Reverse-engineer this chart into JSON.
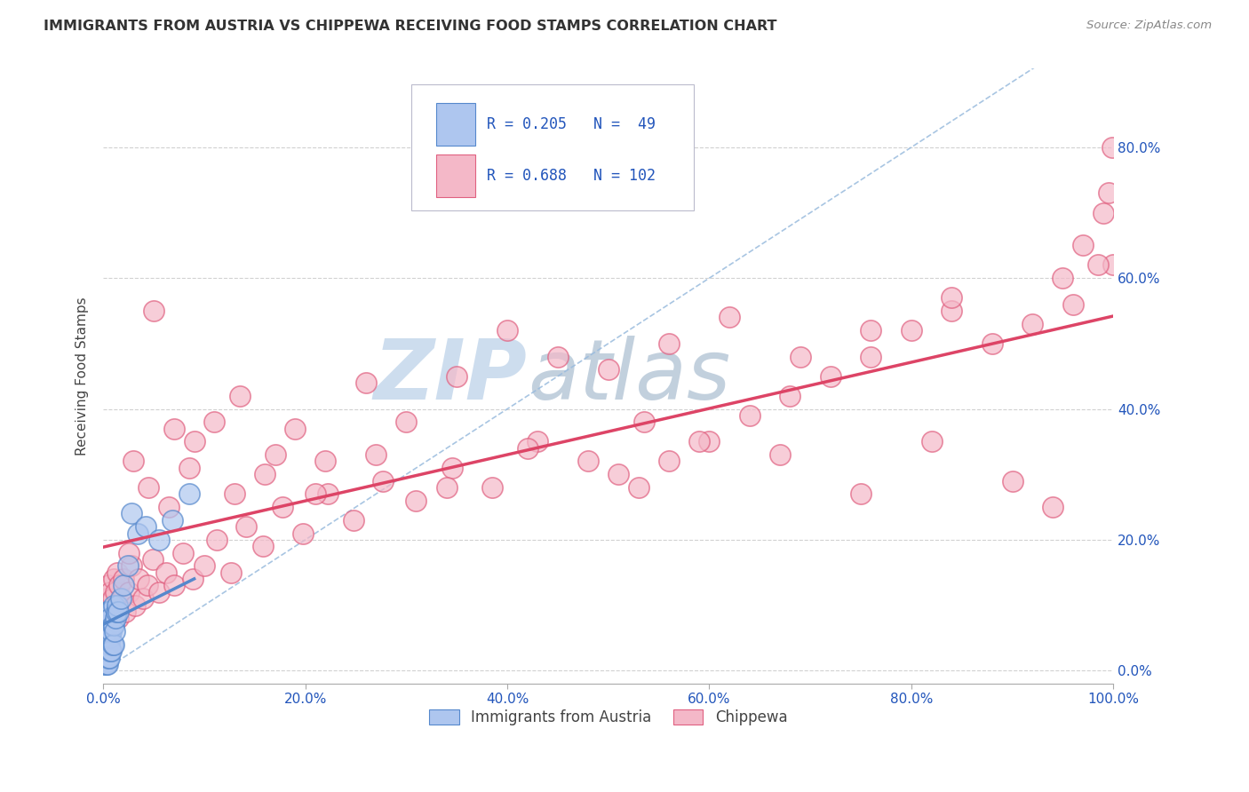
{
  "title": "IMMIGRANTS FROM AUSTRIA VS CHIPPEWA RECEIVING FOOD STAMPS CORRELATION CHART",
  "source": "Source: ZipAtlas.com",
  "ylabel": "Receiving Food Stamps",
  "xlim": [
    0,
    1.0
  ],
  "ylim": [
    -0.02,
    0.92
  ],
  "xticks": [
    0.0,
    0.2,
    0.4,
    0.6,
    0.8,
    1.0
  ],
  "yticks": [
    0.0,
    0.2,
    0.4,
    0.6,
    0.8
  ],
  "xtick_labels": [
    "0.0%",
    "20.0%",
    "40.0%",
    "60.0%",
    "80.0%",
    "100.0%"
  ],
  "ytick_labels": [
    "0.0%",
    "20.0%",
    "40.0%",
    "60.0%",
    "80.0%"
  ],
  "background_color": "#ffffff",
  "grid_color": "#cccccc",
  "austria_color": "#aec6ef",
  "austria_edge_color": "#5588cc",
  "chippewa_color": "#f4b8c8",
  "chippewa_edge_color": "#e06080",
  "austria_R": 0.205,
  "austria_N": 49,
  "chippewa_R": 0.688,
  "chippewa_N": 102,
  "legend_color": "#2255bb",
  "austria_line_color": "#5588cc",
  "chippewa_line_color": "#dd4466",
  "diagonal_color": "#99bbdd",
  "watermark_zip": "ZIP",
  "watermark_atlas": "atlas",
  "watermark_color_zip": "#c0d4e8",
  "watermark_color_atlas": "#c0ccdd",
  "austria_x_pts": [
    0.001,
    0.001,
    0.001,
    0.002,
    0.002,
    0.002,
    0.002,
    0.003,
    0.003,
    0.003,
    0.003,
    0.003,
    0.004,
    0.004,
    0.004,
    0.004,
    0.004,
    0.005,
    0.005,
    0.005,
    0.005,
    0.006,
    0.006,
    0.006,
    0.006,
    0.007,
    0.007,
    0.007,
    0.008,
    0.008,
    0.009,
    0.009,
    0.01,
    0.01,
    0.01,
    0.011,
    0.012,
    0.013,
    0.014,
    0.015,
    0.017,
    0.02,
    0.024,
    0.028,
    0.034,
    0.042,
    0.055,
    0.068,
    0.085
  ],
  "austria_y_pts": [
    0.01,
    0.03,
    0.05,
    0.01,
    0.03,
    0.05,
    0.08,
    0.01,
    0.03,
    0.05,
    0.07,
    0.09,
    0.01,
    0.03,
    0.05,
    0.07,
    0.09,
    0.02,
    0.04,
    0.06,
    0.09,
    0.02,
    0.04,
    0.06,
    0.09,
    0.03,
    0.05,
    0.08,
    0.03,
    0.06,
    0.04,
    0.07,
    0.04,
    0.07,
    0.1,
    0.06,
    0.08,
    0.09,
    0.1,
    0.09,
    0.11,
    0.13,
    0.16,
    0.24,
    0.21,
    0.22,
    0.2,
    0.23,
    0.27
  ],
  "chippewa_x_pts": [
    0.002,
    0.003,
    0.004,
    0.005,
    0.006,
    0.007,
    0.008,
    0.009,
    0.01,
    0.011,
    0.012,
    0.013,
    0.014,
    0.015,
    0.016,
    0.018,
    0.02,
    0.022,
    0.025,
    0.028,
    0.031,
    0.035,
    0.039,
    0.044,
    0.049,
    0.055,
    0.062,
    0.07,
    0.079,
    0.089,
    0.1,
    0.112,
    0.126,
    0.141,
    0.158,
    0.177,
    0.198,
    0.222,
    0.248,
    0.277,
    0.309,
    0.345,
    0.385,
    0.43,
    0.48,
    0.535,
    0.53,
    0.56,
    0.6,
    0.64,
    0.68,
    0.72,
    0.76,
    0.8,
    0.84,
    0.88,
    0.92,
    0.96,
    1.0,
    0.95,
    0.97,
    0.985,
    0.99,
    0.995,
    0.999,
    0.03,
    0.05,
    0.07,
    0.09,
    0.11,
    0.135,
    0.16,
    0.19,
    0.22,
    0.26,
    0.3,
    0.35,
    0.4,
    0.45,
    0.5,
    0.56,
    0.62,
    0.69,
    0.76,
    0.84,
    0.025,
    0.045,
    0.065,
    0.085,
    0.13,
    0.17,
    0.21,
    0.27,
    0.34,
    0.42,
    0.51,
    0.59,
    0.67,
    0.75,
    0.82,
    0.9,
    0.94
  ],
  "chippewa_y_pts": [
    0.1,
    0.11,
    0.08,
    0.13,
    0.09,
    0.12,
    0.08,
    0.11,
    0.14,
    0.09,
    0.12,
    0.1,
    0.15,
    0.08,
    0.13,
    0.11,
    0.14,
    0.09,
    0.12,
    0.16,
    0.1,
    0.14,
    0.11,
    0.13,
    0.17,
    0.12,
    0.15,
    0.13,
    0.18,
    0.14,
    0.16,
    0.2,
    0.15,
    0.22,
    0.19,
    0.25,
    0.21,
    0.27,
    0.23,
    0.29,
    0.26,
    0.31,
    0.28,
    0.35,
    0.32,
    0.38,
    0.28,
    0.32,
    0.35,
    0.39,
    0.42,
    0.45,
    0.48,
    0.52,
    0.55,
    0.5,
    0.53,
    0.56,
    0.62,
    0.6,
    0.65,
    0.62,
    0.7,
    0.73,
    0.8,
    0.32,
    0.55,
    0.37,
    0.35,
    0.38,
    0.42,
    0.3,
    0.37,
    0.32,
    0.44,
    0.38,
    0.45,
    0.52,
    0.48,
    0.46,
    0.5,
    0.54,
    0.48,
    0.52,
    0.57,
    0.18,
    0.28,
    0.25,
    0.31,
    0.27,
    0.33,
    0.27,
    0.33,
    0.28,
    0.34,
    0.3,
    0.35,
    0.33,
    0.27,
    0.35,
    0.29,
    0.25
  ]
}
